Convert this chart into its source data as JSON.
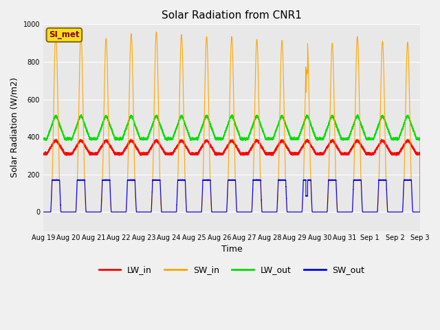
{
  "title": "Solar Radiation from CNR1",
  "xlabel": "Time",
  "ylabel": "Solar Radiation (W/m2)",
  "ylim": [
    -100,
    1000
  ],
  "plot_bg_color": "#e8e8e8",
  "fig_bg_color": "#f0f0f0",
  "legend_label": "SI_met",
  "x_tick_labels": [
    "Aug 19",
    "Aug 20",
    "Aug 21",
    "Aug 22",
    "Aug 23",
    "Aug 24",
    "Aug 25",
    "Aug 26",
    "Aug 27",
    "Aug 28",
    "Aug 29",
    "Aug 30",
    "Aug 31",
    "Sep 1",
    "Sep 2",
    "Sep 3"
  ],
  "colors": {
    "LW_in": "#ff0000",
    "SW_in": "#ffa500",
    "LW_out": "#00dd00",
    "SW_out": "#0000ff"
  },
  "n_days": 15,
  "sw_in_peaks": [
    955,
    945,
    925,
    950,
    960,
    945,
    935,
    935,
    920,
    915,
    925,
    900,
    935,
    910,
    905
  ],
  "sw_out_peak": 170,
  "lw_in_base": 310,
  "lw_in_amp": 55,
  "lw_out_base": 390,
  "lw_out_amp": 90,
  "figsize": [
    6.4,
    4.8
  ],
  "dpi": 100
}
